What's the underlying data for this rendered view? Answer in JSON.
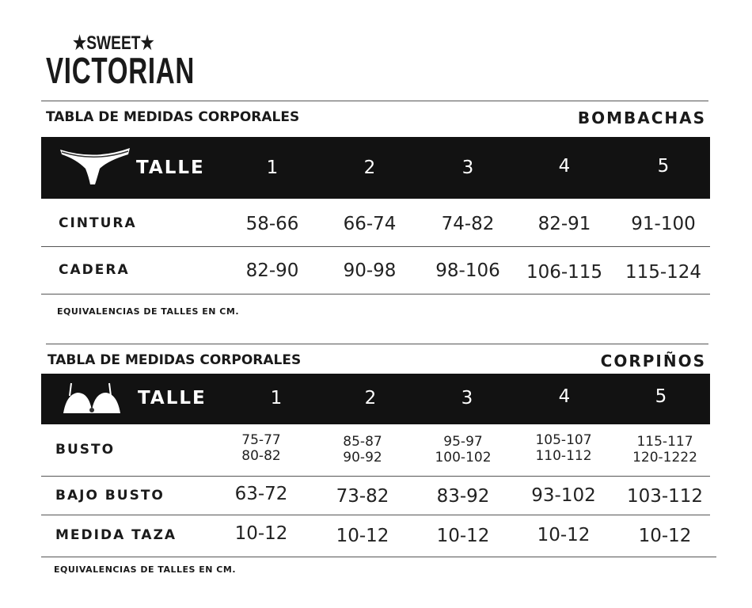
{
  "brand": {
    "line1": "SWEET",
    "line2": "VICTORIAN"
  },
  "tables": [
    {
      "title": "TABLA DE MEDIDAS CORPORALES",
      "category": "BOMBACHAS",
      "header_label": "TALLE",
      "icon": "panties-icon",
      "sizes": [
        "1",
        "2",
        "3",
        "4",
        "5"
      ],
      "rows": [
        {
          "label": "CINTURA",
          "values": [
            "58-66",
            "66-74",
            "74-82",
            "82-91",
            "91-100"
          ]
        },
        {
          "label": "CADERA",
          "values": [
            "82-90",
            "90-98",
            "98-106",
            "106-115",
            "115-124"
          ]
        }
      ],
      "note": "EQUIVALENCIAS DE TALLES EN CM."
    },
    {
      "title": "TABLA DE MEDIDAS CORPORALES",
      "category": "CORPIÑOS",
      "header_label": "TALLE",
      "icon": "bra-icon",
      "sizes": [
        "1",
        "2",
        "3",
        "4",
        "5"
      ],
      "rows": [
        {
          "label": "BUSTO",
          "values": [
            [
              "75-77",
              "80-82"
            ],
            [
              "85-87",
              "90-92"
            ],
            [
              "95-97",
              "100-102"
            ],
            [
              "105-107",
              "110-112"
            ],
            [
              "115-117",
              "120-1222"
            ]
          ]
        },
        {
          "label": "BAJO BUSTO",
          "values": [
            "63-72",
            "73-82",
            "83-92",
            "93-102",
            "103-112"
          ]
        },
        {
          "label": "MEDIDA TAZA",
          "values": [
            "10-12",
            "10-12",
            "10-12",
            "10-12",
            "10-12"
          ]
        }
      ],
      "note": "EQUIVALENCIAS DE TALLES EN CM."
    }
  ]
}
